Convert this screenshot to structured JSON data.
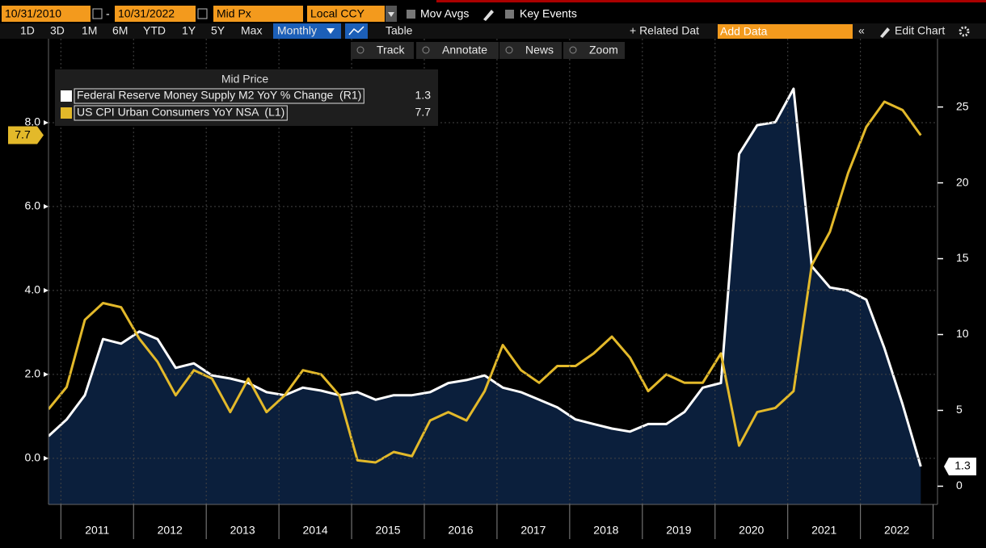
{
  "toolbar": {
    "start_date": "10/31/2010",
    "end_date": "10/31/2022",
    "field": "Mid Px",
    "currency": "Local CCY",
    "mov_avgs": "Mov Avgs",
    "key_events": "Key Events",
    "ranges": [
      "1D",
      "3D",
      "1M",
      "6M",
      "YTD",
      "1Y",
      "5Y",
      "Max"
    ],
    "frequency": "Monthly",
    "table": "Table",
    "related_data": "+ Related Dat",
    "add_data": "Add Data",
    "edit_chart": "Edit Chart",
    "tools": [
      "Track",
      "Annotate",
      "News",
      "Zoom"
    ]
  },
  "chart_data": {
    "type": "line",
    "legend_title": "Mid Price",
    "legend_position": "upper left",
    "grid": true,
    "x": [
      2010.83,
      2011.08,
      2011.33,
      2011.58,
      2011.83,
      2012.08,
      2012.33,
      2012.58,
      2012.83,
      2013.08,
      2013.33,
      2013.58,
      2013.83,
      2014.08,
      2014.33,
      2014.58,
      2014.83,
      2015.08,
      2015.33,
      2015.58,
      2015.83,
      2016.08,
      2016.33,
      2016.58,
      2016.83,
      2017.08,
      2017.33,
      2017.58,
      2017.83,
      2018.08,
      2018.33,
      2018.58,
      2018.83,
      2019.08,
      2019.33,
      2019.58,
      2019.83,
      2020.08,
      2020.33,
      2020.58,
      2020.83,
      2021.08,
      2021.33,
      2021.58,
      2021.83,
      2022.08,
      2022.33,
      2022.58,
      2022.83
    ],
    "xlim": [
      2010.83,
      2023.06
    ],
    "xticks": [
      {
        "value": 2011.5,
        "label": "2011"
      },
      {
        "value": 2012.5,
        "label": "2012"
      },
      {
        "value": 2013.5,
        "label": "2013"
      },
      {
        "value": 2014.5,
        "label": "2014"
      },
      {
        "value": 2015.5,
        "label": "2015"
      },
      {
        "value": 2016.5,
        "label": "2016"
      },
      {
        "value": 2017.5,
        "label": "2017"
      },
      {
        "value": 2018.5,
        "label": "2018"
      },
      {
        "value": 2019.5,
        "label": "2019"
      },
      {
        "value": 2020.5,
        "label": "2020"
      },
      {
        "value": 2021.5,
        "label": "2021"
      },
      {
        "value": 2022.5,
        "label": "2022"
      }
    ],
    "ylim": [
      -1.1,
      10.0
    ],
    "yticks": [
      {
        "value": 0,
        "label": "0.0"
      },
      {
        "value": 2,
        "label": "2.0"
      },
      {
        "value": 4,
        "label": "4.0"
      },
      {
        "value": 6,
        "label": "6.0"
      },
      {
        "value": 8,
        "label": "8.0"
      }
    ],
    "y2lim": [
      -1.2,
      29.5
    ],
    "y2ticks": [
      0,
      5,
      10,
      15,
      20,
      25
    ],
    "series": [
      {
        "name": "Federal Reserve Money Supply M2 YoY % Change  (R1)",
        "axis": "y2",
        "color": "#ffffff",
        "area_color": "#0b1f3c",
        "values": [
          3.3,
          4.4,
          6.0,
          9.7,
          9.4,
          10.2,
          9.7,
          7.8,
          8.1,
          7.3,
          7.1,
          6.8,
          6.2,
          6.0,
          6.5,
          6.3,
          6.0,
          6.2,
          5.7,
          6.0,
          6.0,
          6.2,
          6.8,
          7.0,
          7.3,
          6.5,
          6.2,
          5.7,
          5.2,
          4.4,
          4.1,
          3.8,
          3.6,
          4.1,
          4.1,
          4.9,
          6.5,
          6.8,
          21.9,
          23.8,
          24.0,
          26.2,
          14.5,
          13.1,
          12.9,
          12.3,
          9.1,
          5.4,
          1.3
        ]
      },
      {
        "name": "US CPI Urban Consumers YoY NSA  (L1)",
        "axis": "y",
        "color": "#e3b92a",
        "values": [
          1.17,
          1.7,
          3.3,
          3.7,
          3.6,
          2.85,
          2.3,
          1.5,
          2.1,
          1.9,
          1.1,
          1.9,
          1.1,
          1.5,
          2.1,
          2.0,
          1.5,
          -0.05,
          -0.1,
          0.15,
          0.05,
          0.9,
          1.1,
          0.9,
          1.6,
          2.7,
          2.1,
          1.8,
          2.2,
          2.2,
          2.5,
          2.9,
          2.4,
          1.6,
          2.0,
          1.8,
          1.8,
          2.5,
          0.3,
          1.1,
          1.2,
          1.6,
          4.6,
          5.4,
          6.8,
          7.9,
          8.5,
          8.3,
          7.7
        ]
      }
    ]
  }
}
